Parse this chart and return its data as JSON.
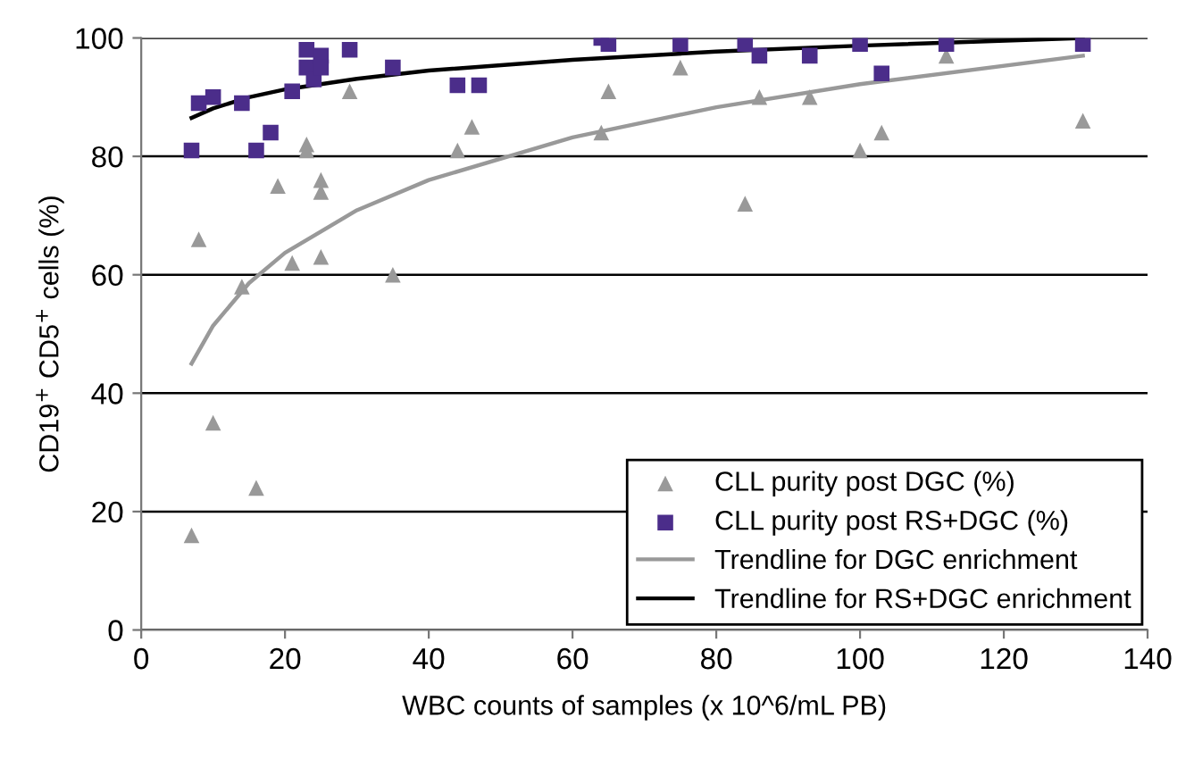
{
  "chart_data": {
    "type": "scatter",
    "xlabel": "WBC counts of samples (x 10^6/mL PB)",
    "ylabel": "CD19$^{+}$ CD5$^{+}$ cells (%)",
    "xlim": [
      0,
      140
    ],
    "ylim": [
      0,
      100
    ],
    "xticks": [
      0,
      20,
      40,
      60,
      80,
      100,
      120,
      140
    ],
    "yticks": [
      0,
      20,
      40,
      60,
      80,
      100
    ],
    "grid": "y",
    "legend": "bottom right",
    "series": [
      {
        "name": "CLL purity post DGC (%)",
        "marker": "triangle",
        "color": "#999999",
        "x": [
          7,
          8,
          10,
          14,
          16,
          19,
          21,
          23,
          23,
          25,
          25,
          25,
          29,
          35,
          44,
          46,
          65,
          64,
          75,
          84,
          86,
          93,
          100,
          103,
          112,
          131
        ],
        "values": [
          16,
          66,
          35,
          58,
          24,
          75,
          62,
          82,
          81,
          76,
          74,
          63,
          91,
          60,
          81,
          85,
          91,
          84,
          95,
          72,
          90,
          90,
          81,
          84,
          97,
          86
        ]
      },
      {
        "name": "CLL purity post RS+DGC (%)",
        "marker": "square",
        "color": "#4b2d8a",
        "x": [
          7,
          8,
          10,
          14,
          16,
          18,
          21,
          23,
          23,
          24,
          25,
          25,
          29,
          35,
          44,
          47,
          64,
          65,
          75,
          84,
          86,
          93,
          100,
          103,
          112,
          131
        ],
        "values": [
          81,
          89,
          90,
          89,
          81,
          84,
          91,
          98,
          95,
          93,
          97,
          95,
          98,
          95,
          92,
          92,
          100,
          99,
          99,
          99,
          97,
          97,
          99,
          94,
          99,
          99
        ]
      },
      {
        "name": "Trendline for DGC enrichment",
        "type": "line",
        "color": "#999999",
        "x": [
          7,
          10,
          15,
          20,
          30,
          40,
          60,
          80,
          100,
          131
        ],
        "values": [
          45,
          51.4,
          58.6,
          63.7,
          70.9,
          76,
          83.2,
          88.3,
          92.2,
          97
        ]
      },
      {
        "name": "Trendline for RS+DGC enrichment",
        "type": "line",
        "color": "#000000",
        "x": [
          7,
          10,
          15,
          20,
          30,
          40,
          60,
          80,
          100,
          131
        ],
        "values": [
          86.5,
          88.1,
          90,
          91.3,
          93.1,
          94.5,
          96.3,
          97.7,
          98.7,
          100
        ]
      }
    ]
  }
}
